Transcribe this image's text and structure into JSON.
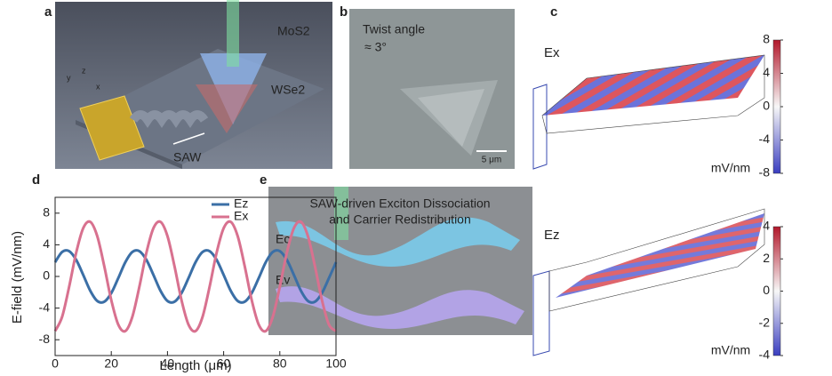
{
  "panel_labels": [
    "a",
    "b",
    "c",
    "d",
    "e"
  ],
  "panel_a": {
    "labels": {
      "top": "MoS2",
      "bottom": "WSe2",
      "wave": "SAW"
    },
    "axes": [
      "y",
      "z",
      "x"
    ]
  },
  "panel_b": {
    "annotation": [
      "Twist angle",
      "≈ 3°"
    ],
    "scale_bar": "5 μm"
  },
  "panel_c": {
    "plots": [
      {
        "field": "Ex",
        "colorbar": {
          "lim": [
            -8,
            8
          ],
          "ticks": [
            8,
            4,
            0,
            -4,
            -8
          ],
          "unit": "mV/nm"
        }
      },
      {
        "field": "Ez",
        "colorbar": {
          "lim": [
            -4,
            4
          ],
          "ticks": [
            4,
            2,
            0,
            -2,
            -4
          ],
          "unit": "mV/nm"
        }
      }
    ]
  },
  "chart_data": {
    "type": "line",
    "x_label": "Length (μm)",
    "y_label": "E-field (mV/nm)",
    "x": [
      0,
      2.5,
      5,
      7.5,
      10,
      12.5,
      15,
      17.5,
      20,
      22.5,
      25,
      27.5,
      30,
      32.5,
      35,
      37.5,
      40,
      42.5,
      45,
      47.5,
      50,
      52.5,
      55,
      57.5,
      60,
      62.5,
      65,
      67.5,
      70,
      72.5,
      75,
      77.5,
      80,
      82.5,
      85,
      87.5,
      90,
      92.5,
      95,
      97.5,
      100
    ],
    "series": [
      {
        "name": "Ez",
        "color": "#3b6fa6",
        "values": [
          1.8,
          3.1,
          3.2,
          2.1,
          0.2,
          -1.8,
          -3.1,
          -3.2,
          -2.1,
          -0.2,
          1.8,
          3.1,
          3.2,
          2.1,
          0.2,
          -1.8,
          -3.1,
          -3.2,
          -2.1,
          -0.2,
          1.8,
          3.1,
          3.2,
          2.1,
          0.2,
          -1.8,
          -3.1,
          -3.2,
          -2.1,
          -0.2,
          1.8,
          3.1,
          3.2,
          2.1,
          0.2,
          -1.8,
          -3.1,
          -3.2,
          -2.1,
          -0.2,
          1.8
        ]
      },
      {
        "name": "Ex",
        "color": "#d8718f",
        "values": [
          -6.9,
          -5.1,
          -1.3,
          3.0,
          6.1,
          6.9,
          5.1,
          1.3,
          -3.0,
          -6.1,
          -6.9,
          -5.1,
          -1.3,
          3.0,
          6.1,
          6.9,
          5.1,
          1.3,
          -3.0,
          -6.1,
          -6.9,
          -5.1,
          -1.3,
          3.0,
          6.1,
          6.9,
          5.1,
          1.3,
          -3.0,
          -6.1,
          -6.9,
          -5.1,
          -1.3,
          3.0,
          6.1,
          6.9,
          5.1,
          1.3,
          -3.0,
          -6.1,
          -6.9
        ]
      }
    ],
    "xlim": [
      0,
      100
    ],
    "xticks": [
      0,
      20,
      40,
      60,
      80,
      100
    ],
    "ylim": [
      -10,
      10
    ],
    "yticks": [
      -8,
      -4,
      0,
      4,
      8
    ],
    "legend": "upper right"
  },
  "panel_e": {
    "title": [
      "SAW-driven Exciton Dissociation",
      "and Carrier Redistribution"
    ],
    "bands": [
      "Ec",
      "Ev"
    ]
  }
}
